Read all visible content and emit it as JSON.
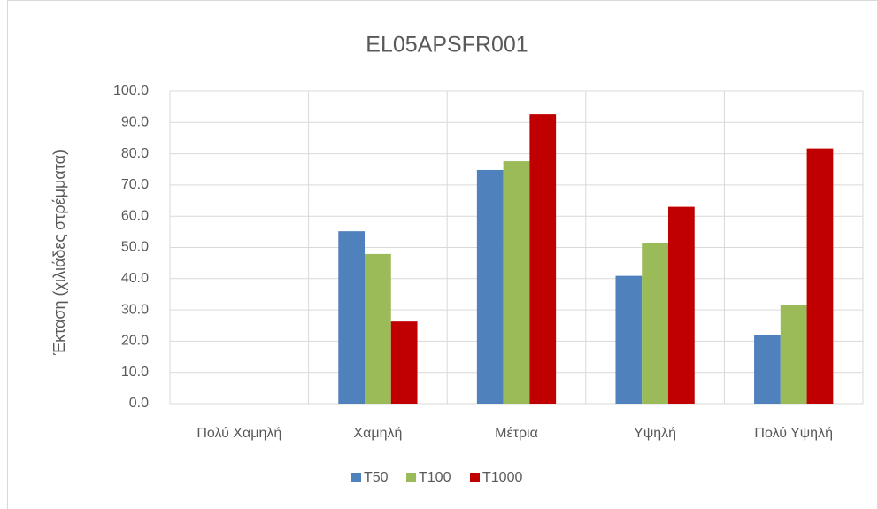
{
  "chart_data": {
    "type": "bar",
    "title": "EL05APSFR001",
    "y_label": "Έκταση (χιλιάδες στρέμματα)",
    "categories": [
      "Πολύ Χαμηλή",
      "Χαμηλή",
      "Μέτρια",
      "Υψηλή",
      "Πολύ Υψηλή"
    ],
    "series": [
      {
        "name": "T50",
        "color": "#4f81bd",
        "values": [
          0,
          55.2,
          74.8,
          40.9,
          21.9
        ]
      },
      {
        "name": "T100",
        "color": "#9bbb59",
        "values": [
          0,
          47.9,
          77.6,
          51.3,
          31.7
        ]
      },
      {
        "name": "T1000",
        "color": "#c00000",
        "values": [
          0,
          26.3,
          92.6,
          63.0,
          81.7
        ]
      }
    ],
    "ylim": [
      0,
      100
    ],
    "yticks": [
      {
        "value": 0,
        "label": "0.0"
      },
      {
        "value": 10,
        "label": "10.0"
      },
      {
        "value": 20,
        "label": "20.0"
      },
      {
        "value": 30,
        "label": "30.0"
      },
      {
        "value": 40,
        "label": "40.0"
      },
      {
        "value": 50,
        "label": "50.0"
      },
      {
        "value": 60,
        "label": "60.0"
      },
      {
        "value": 70,
        "label": "70.0"
      },
      {
        "value": 80,
        "label": "80.0"
      },
      {
        "value": 90,
        "label": "90.0"
      },
      {
        "value": 100,
        "label": "100.0"
      }
    ],
    "grid": true,
    "legend": "bottom"
  }
}
